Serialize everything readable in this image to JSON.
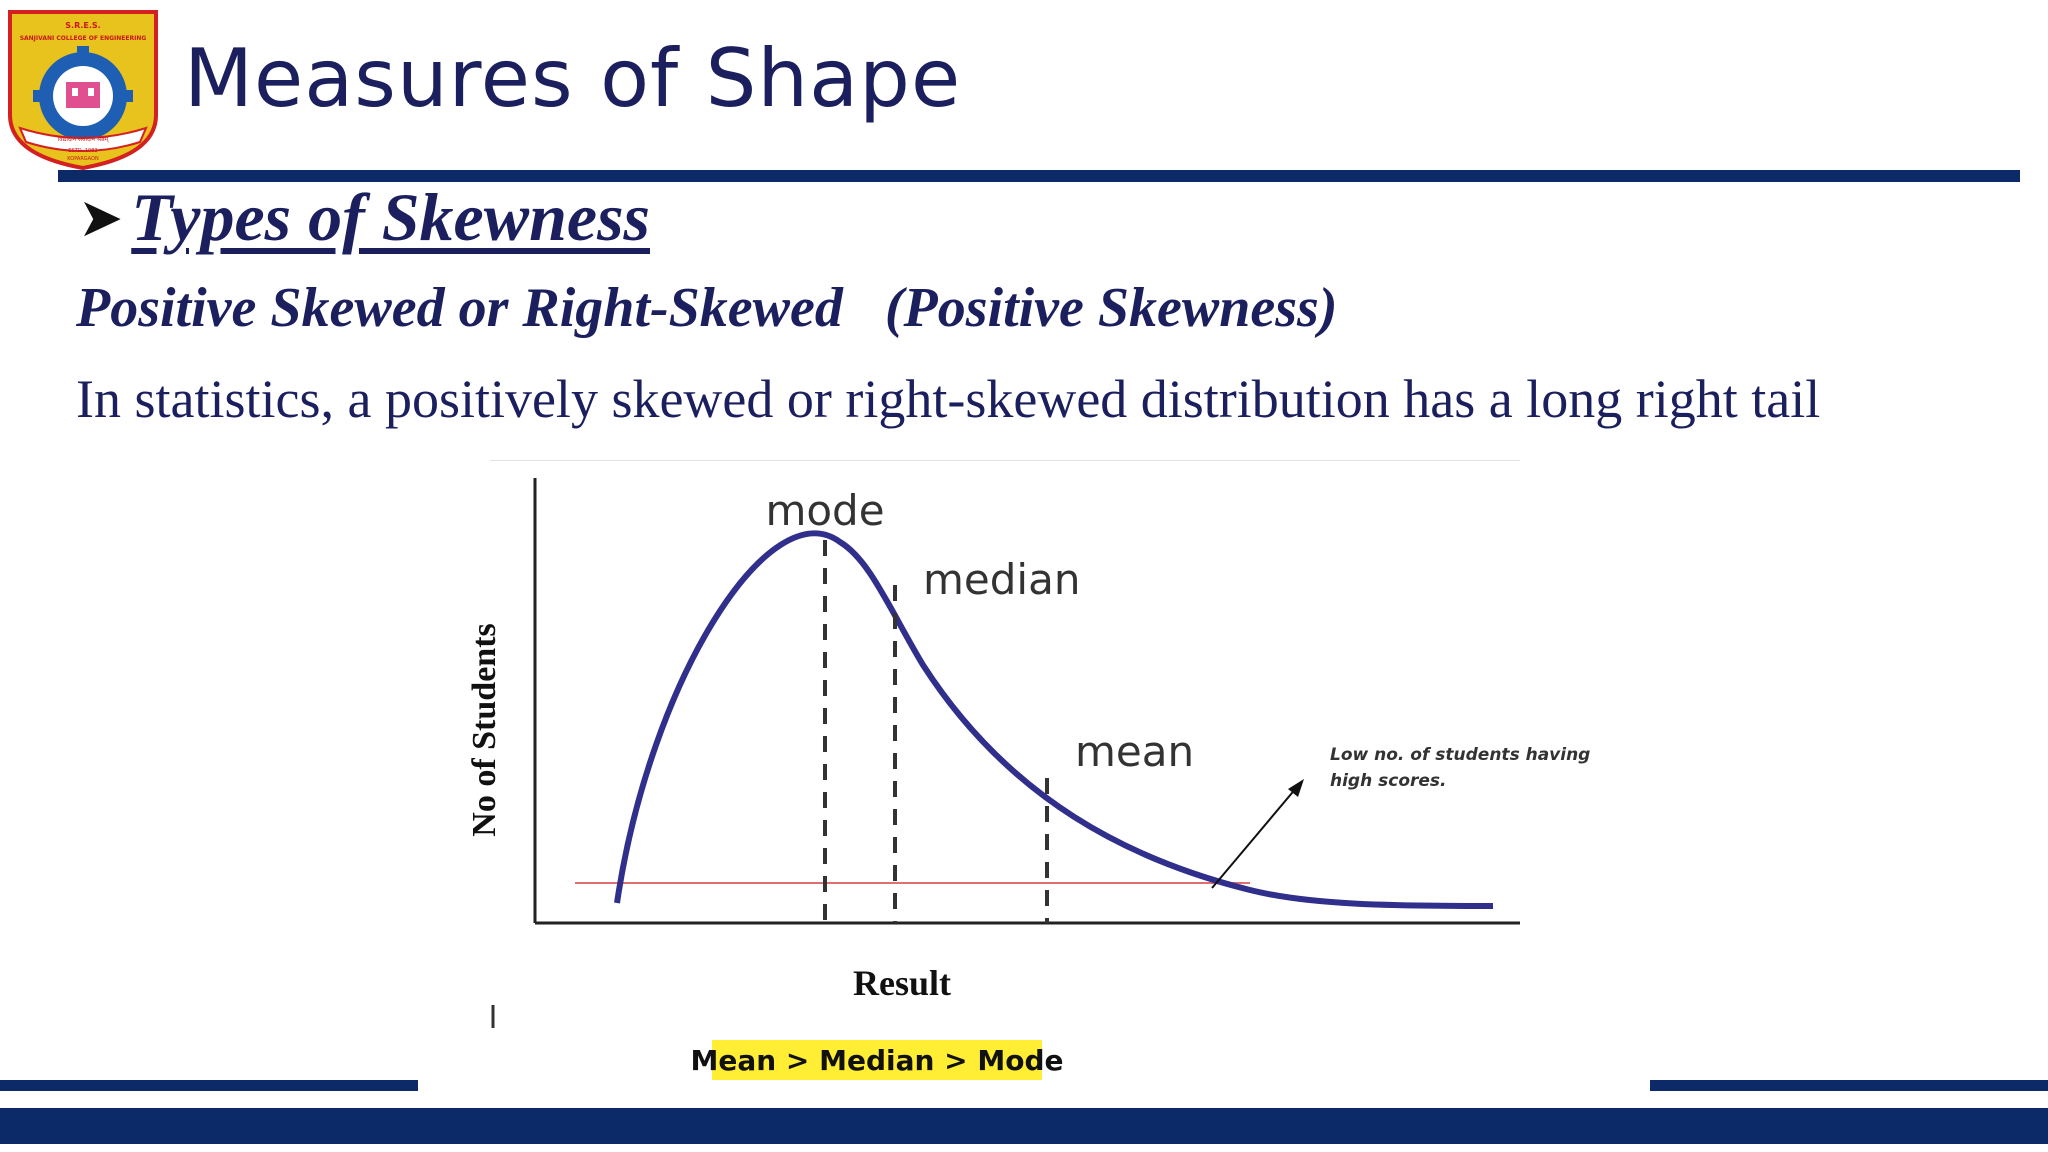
{
  "logo": {
    "top_text": "S.R.E.S.",
    "college": "SANJIVANI COLLEGE OF ENGINEERING",
    "motto": "विद्यादान सर्वादान श्रेष्ठम्",
    "estd": "ESTD. 1983",
    "place": "KOPARGAON",
    "colors": {
      "outer": "#e8c21d",
      "border": "#d42020",
      "gear": "#1e5fb3",
      "inner": "#ffffff"
    }
  },
  "slide": {
    "title": "Measures of Shape",
    "bullet_icon": "arrow-bullet-icon",
    "section_heading": "Types of Skewness",
    "subheading": "Positive Skewed or Right-Skewed   (Positive Skewness)",
    "body": "In statistics, a positively skewed or right-skewed distribution has a long right tail"
  },
  "diagram": {
    "y_axis_label": "No of Students",
    "x_axis_label": "Result",
    "labels": {
      "mode": "mode",
      "median": "median",
      "mean": "mean"
    },
    "annotation_line1": "Low no. of students having",
    "annotation_line2": "high scores.",
    "relation": "Mean > Median > Mode",
    "colors": {
      "curve": "#30308c",
      "axis": "#222222",
      "reference_line": "#e07070",
      "highlight": "#ffee33"
    }
  }
}
